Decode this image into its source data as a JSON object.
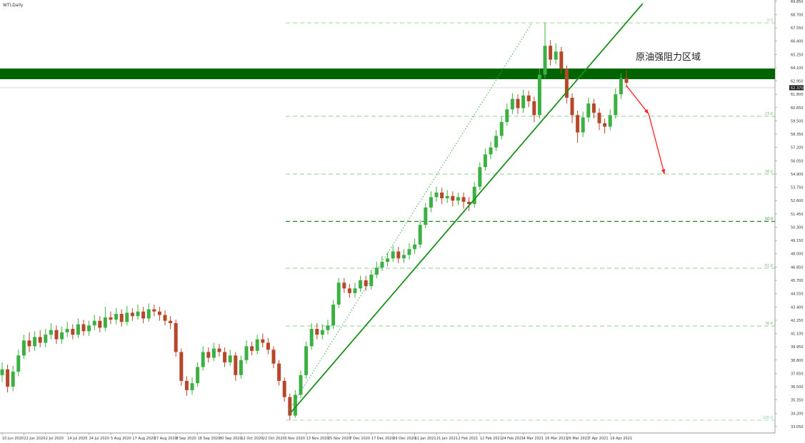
{
  "chart_data": {
    "type": "candlestick",
    "title": "WTI,Daily",
    "annotation": "原油强阻力区域",
    "up_color": "#3cb043",
    "down_color": "#b7472a",
    "ylim": [
      32.49,
      69.96
    ],
    "yticks": [
      {
        "value": 33.05,
        "label": "33.050"
      },
      {
        "value": 34.2,
        "label": "34.200"
      },
      {
        "value": 35.35,
        "label": "35.350"
      },
      {
        "value": 36.5,
        "label": "36.500"
      },
      {
        "value": 37.65,
        "label": "37.650"
      },
      {
        "value": 38.8,
        "label": "38.800"
      },
      {
        "value": 39.95,
        "label": "39.950"
      },
      {
        "value": 41.1,
        "label": "41.100"
      },
      {
        "value": 42.25,
        "label": "42.250"
      },
      {
        "value": 43.4,
        "label": "43.400"
      },
      {
        "value": 44.55,
        "label": "44.550"
      },
      {
        "value": 45.7,
        "label": "45.700"
      },
      {
        "value": 46.85,
        "label": "46.850"
      },
      {
        "value": 48.0,
        "label": "48.000"
      },
      {
        "value": 49.15,
        "label": "49.150"
      },
      {
        "value": 50.3,
        "label": "50.300"
      },
      {
        "value": 51.45,
        "label": "51.450"
      },
      {
        "value": 52.6,
        "label": "52.600"
      },
      {
        "value": 53.75,
        "label": "53.750"
      },
      {
        "value": 54.9,
        "label": "54.900"
      },
      {
        "value": 56.05,
        "label": "56.050"
      },
      {
        "value": 57.2,
        "label": "57.200"
      },
      {
        "value": 58.35,
        "label": "58.350"
      },
      {
        "value": 59.5,
        "label": "59.500"
      },
      {
        "value": 60.65,
        "label": "60.650"
      },
      {
        "value": 61.8,
        "label": "61.800"
      },
      {
        "value": 62.95,
        "label": "62.950"
      },
      {
        "value": 64.1,
        "label": "64.100"
      },
      {
        "value": 65.25,
        "label": "65.250"
      },
      {
        "value": 66.4,
        "label": "66.400"
      },
      {
        "value": 67.55,
        "label": "67.550"
      },
      {
        "value": 68.7,
        "label": "68.700"
      },
      {
        "value": 69.85,
        "label": "69.850"
      }
    ],
    "xticks": [
      {
        "value": 0,
        "label": "10 Jun 2020"
      },
      {
        "value": 4,
        "label": "22 Jun 2020"
      },
      {
        "value": 8,
        "label": "2 Jul 2020"
      },
      {
        "value": 12,
        "label": "14 Jul 2020"
      },
      {
        "value": 16,
        "label": "24 Jul 2020"
      },
      {
        "value": 20,
        "label": "5 Aug 2020"
      },
      {
        "value": 24,
        "label": "17 Aug 2020"
      },
      {
        "value": 28,
        "label": "27 Aug 2020"
      },
      {
        "value": 32,
        "label": "8 Sep 2020"
      },
      {
        "value": 36,
        "label": "18 Sep 2020"
      },
      {
        "value": 40,
        "label": "30 Sep 2020"
      },
      {
        "value": 44,
        "label": "12 Oct 2020"
      },
      {
        "value": 48,
        "label": "22 Oct 2020"
      },
      {
        "value": 52,
        "label": "3 Nov 2020"
      },
      {
        "value": 56,
        "label": "13 Nov 2020"
      },
      {
        "value": 60,
        "label": "25 Nov 2020"
      },
      {
        "value": 64,
        "label": "7 Dec 2020"
      },
      {
        "value": 68,
        "label": "17 Dec 2020"
      },
      {
        "value": 72,
        "label": "29 Dec 2020"
      },
      {
        "value": 76,
        "label": "11 Jan 2021"
      },
      {
        "value": 80,
        "label": "21 Jan 2021"
      },
      {
        "value": 84,
        "label": "2 Feb 2021"
      },
      {
        "value": 88,
        "label": "12 Feb 2021"
      },
      {
        "value": 92,
        "label": "24 Feb 2021"
      },
      {
        "value": 96,
        "label": "4 Mar 2021"
      },
      {
        "value": 100,
        "label": "16 Mar 2021"
      },
      {
        "value": 104,
        "label": "26 Mar 2021"
      },
      {
        "value": 108,
        "label": "7 Apr 2021"
      },
      {
        "value": 112,
        "label": "19 Apr 2021"
      }
    ],
    "open": [
      37.5,
      38.0,
      36.5,
      37.8,
      39.2,
      40.5,
      40.0,
      40.8,
      40.3,
      41.0,
      41.4,
      40.6,
      41.2,
      41.5,
      41.0,
      41.9,
      41.3,
      41.8,
      42.2,
      41.6,
      42.5,
      42.3,
      42.8,
      42.1,
      42.9,
      42.6,
      43.0,
      42.4,
      43.2,
      43.0,
      42.7,
      42.2,
      42.0,
      39.5,
      37.0,
      36.2,
      36.8,
      38.2,
      39.5,
      39.0,
      39.8,
      39.5,
      38.6,
      39.2,
      37.5,
      38.8,
      40.0,
      39.6,
      40.6,
      40.3,
      39.7,
      38.5,
      37.0,
      35.6,
      34.0,
      35.8,
      37.5,
      40.0,
      41.5,
      41.0,
      41.4,
      41.8,
      43.6,
      45.5,
      45.0,
      44.6,
      45.0,
      45.7,
      45.2,
      46.2,
      46.8,
      47.3,
      47.6,
      48.2,
      47.6,
      47.9,
      48.4,
      48.8,
      50.5,
      52.0,
      52.9,
      53.3,
      52.8,
      53.0,
      52.6,
      52.9,
      52.5,
      52.3,
      53.8,
      55.5,
      56.6,
      57.2,
      58.2,
      59.4,
      60.5,
      61.4,
      60.6,
      61.7,
      61.2,
      60.0,
      63.5,
      66.0,
      64.8,
      65.5,
      64.0,
      61.5,
      60.0,
      58.5,
      59.8,
      61.0,
      60.2,
      59.3,
      59.0,
      60.0,
      61.8,
      63.2
    ],
    "high": [
      38.6,
      38.4,
      38.3,
      39.7,
      41.0,
      41.2,
      41.3,
      41.4,
      41.5,
      42.0,
      41.8,
      41.7,
      42.1,
      41.9,
      42.4,
      42.3,
      42.2,
      42.7,
      42.6,
      43.4,
      43.0,
      43.3,
      43.2,
      43.5,
      43.3,
      43.6,
      43.4,
      43.7,
      43.6,
      43.4,
      43.1,
      42.6,
      42.3,
      39.8,
      37.4,
      37.3,
      38.6,
      40.0,
      39.9,
      40.3,
      40.2,
      39.9,
      39.7,
      39.5,
      39.2,
      40.5,
      40.4,
      41.0,
      41.1,
      40.7,
      40.0,
      38.8,
      37.3,
      35.9,
      36.2,
      37.9,
      40.4,
      42.0,
      42.0,
      41.9,
      42.3,
      44.0,
      45.9,
      45.9,
      45.4,
      45.5,
      46.1,
      46.1,
      46.6,
      47.3,
      47.8,
      48.1,
      48.7,
      48.6,
      48.4,
      48.9,
      49.3,
      50.9,
      52.4,
      53.4,
      53.8,
      53.7,
      53.5,
      53.4,
      53.3,
      53.3,
      52.9,
      54.2,
      55.9,
      57.1,
      57.7,
      58.7,
      59.9,
      61.0,
      61.9,
      61.8,
      62.2,
      62.1,
      61.6,
      64.0,
      68.0,
      66.5,
      66.2,
      65.9,
      64.3,
      61.9,
      60.4,
      60.3,
      61.5,
      61.4,
      60.6,
      59.7,
      60.5,
      62.3,
      63.6,
      63.9
    ],
    "low": [
      36.9,
      36.0,
      36.1,
      37.4,
      38.9,
      39.5,
      39.6,
      39.9,
      39.9,
      40.6,
      40.2,
      40.2,
      40.8,
      40.6,
      40.7,
      40.9,
      40.9,
      41.4,
      41.2,
      41.3,
      41.9,
      41.9,
      41.7,
      41.8,
      42.2,
      42.3,
      42.0,
      42.1,
      42.6,
      42.2,
      41.8,
      41.5,
      39.1,
      36.6,
      35.7,
      35.8,
      36.5,
      37.9,
      38.6,
      38.7,
      39.1,
      38.2,
      38.3,
      37.0,
      37.2,
      38.5,
      39.2,
      39.3,
      39.9,
      39.3,
      38.1,
      36.6,
      35.2,
      33.6,
      33.8,
      35.5,
      37.2,
      39.7,
      40.6,
      40.6,
      41.0,
      41.5,
      43.3,
      44.6,
      44.2,
      44.2,
      44.7,
      44.8,
      44.9,
      45.9,
      46.5,
      46.9,
      47.3,
      47.2,
      47.2,
      47.5,
      48.0,
      48.5,
      50.2,
      51.6,
      52.5,
      52.3,
      52.4,
      52.1,
      52.2,
      51.9,
      51.7,
      52.0,
      53.5,
      55.2,
      56.2,
      56.9,
      57.9,
      59.1,
      60.1,
      60.1,
      60.2,
      60.7,
      59.4,
      59.7,
      63.2,
      64.3,
      64.4,
      63.6,
      61.0,
      59.3,
      57.6,
      58.1,
      59.4,
      59.7,
      58.7,
      58.4,
      58.7,
      59.7,
      61.4,
      62.4
    ],
    "close": [
      38.0,
      36.5,
      37.8,
      39.2,
      40.5,
      40.0,
      40.8,
      40.3,
      41.0,
      41.4,
      40.6,
      41.2,
      41.5,
      41.0,
      41.9,
      41.3,
      41.8,
      42.2,
      41.6,
      42.5,
      42.3,
      42.8,
      42.1,
      42.9,
      42.6,
      43.0,
      42.4,
      43.2,
      43.0,
      42.7,
      42.2,
      42.0,
      39.5,
      37.0,
      36.2,
      36.8,
      38.2,
      39.5,
      39.0,
      39.8,
      39.5,
      38.6,
      39.2,
      37.5,
      38.8,
      40.0,
      39.6,
      40.6,
      40.3,
      39.7,
      38.5,
      37.0,
      35.6,
      34.0,
      35.8,
      37.5,
      40.0,
      41.5,
      41.0,
      41.4,
      41.8,
      43.6,
      45.5,
      45.0,
      44.6,
      45.0,
      45.7,
      45.2,
      46.2,
      46.8,
      47.3,
      47.6,
      48.2,
      47.6,
      47.9,
      48.4,
      48.8,
      50.5,
      52.0,
      52.9,
      53.3,
      52.8,
      53.0,
      52.6,
      52.9,
      52.5,
      52.3,
      53.8,
      55.5,
      56.6,
      57.2,
      58.2,
      59.4,
      60.5,
      61.4,
      60.6,
      61.7,
      61.2,
      60.0,
      63.5,
      66.0,
      64.8,
      65.5,
      64.0,
      61.5,
      60.0,
      58.5,
      59.8,
      61.0,
      60.2,
      59.3,
      59.0,
      60.0,
      61.8,
      63.2,
      62.8
    ],
    "last_price": {
      "value": 62.37,
      "label": "62.370"
    },
    "resistance_zone": {
      "from": 63.11,
      "to": 64.03,
      "color": "#006400"
    },
    "fib_levels": [
      {
        "label": "0.0",
        "price": 67.98,
        "color": "#90d090"
      },
      {
        "label": "23.6",
        "price": 59.9,
        "color": "#6cc06c"
      },
      {
        "label": "38.2",
        "price": 54.9,
        "color": "#6cc06c"
      },
      {
        "label": "50.0",
        "price": 50.8,
        "color": "#1e8f1e"
      },
      {
        "label": "61.8",
        "price": 46.75,
        "color": "#6cc06c"
      },
      {
        "label": "76.4",
        "price": 41.75,
        "color": "#6cc06c"
      },
      {
        "label": "100.0",
        "price": 33.6,
        "color": "#90d090"
      }
    ],
    "trendlines": [
      {
        "x": [
          53,
          118
        ],
        "y": [
          34.16,
          69.65
        ],
        "color": "#1a8f1a",
        "style": "solid"
      },
      {
        "x": [
          52.9,
          97.6
        ],
        "y": [
          34.5,
          67.98
        ],
        "color": "#3cb043",
        "style": "dotted"
      }
    ],
    "arrow": {
      "x": [
        115,
        119.1,
        122
      ],
      "y": [
        62.55,
        60.1,
        54.9
      ],
      "color": "#ff2020"
    }
  }
}
